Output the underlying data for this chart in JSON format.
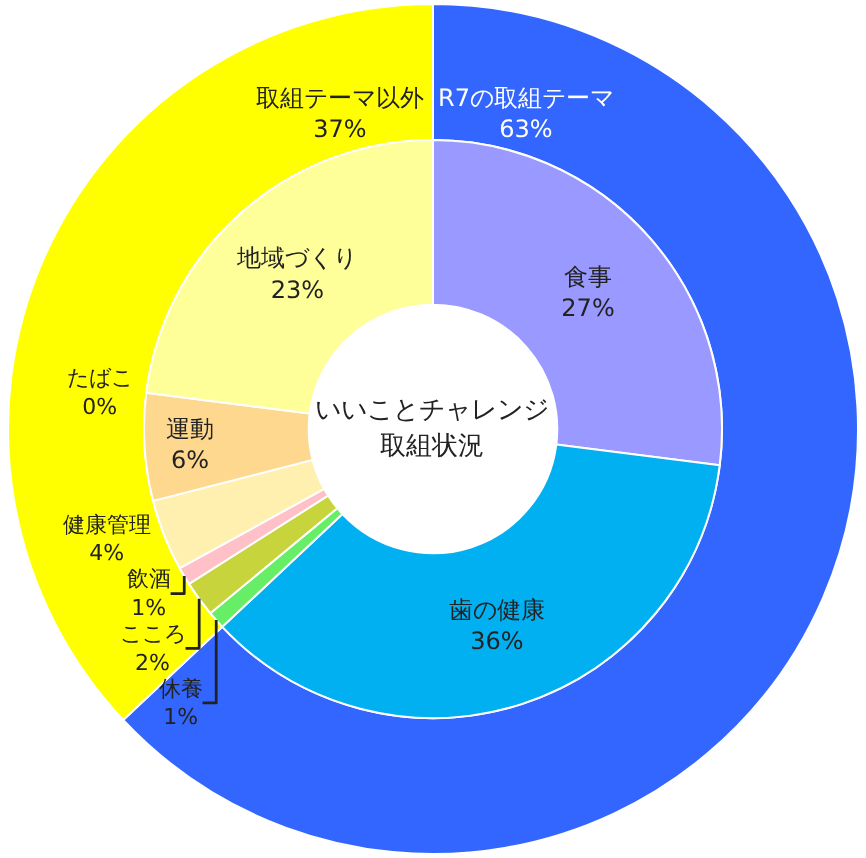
{
  "chart_data": [
    {
      "type": "donut",
      "legend": false,
      "categories": [
        "R7の取組テーマ",
        "取組テーマ以外"
      ],
      "values": [
        63,
        37
      ],
      "colors": [
        "#3366ff",
        "#ffff00"
      ],
      "value_labels": [
        "63%",
        "37%"
      ]
    },
    {
      "type": "donut",
      "title": "いいことチャレンジ取組状況",
      "legend": false,
      "categories": [
        "食事",
        "歯の健康",
        "休養",
        "こころ",
        "飲酒",
        "健康管理",
        "運動",
        "たばこ",
        "地域づくり"
      ],
      "values": [
        27,
        36,
        1,
        2,
        1,
        4,
        6,
        0,
        23
      ],
      "colors": [
        "#9999ff",
        "#00b0f0",
        "#66ee66",
        "#c8d43c",
        "#ffc0c8",
        "#fff0b0",
        "#ffd890",
        "#ffe0c0",
        "#ffff99"
      ],
      "value_labels": [
        "27%",
        "36%",
        "1%",
        "2%",
        "1%",
        "4%",
        "6%",
        "0%",
        "23%"
      ]
    }
  ]
}
